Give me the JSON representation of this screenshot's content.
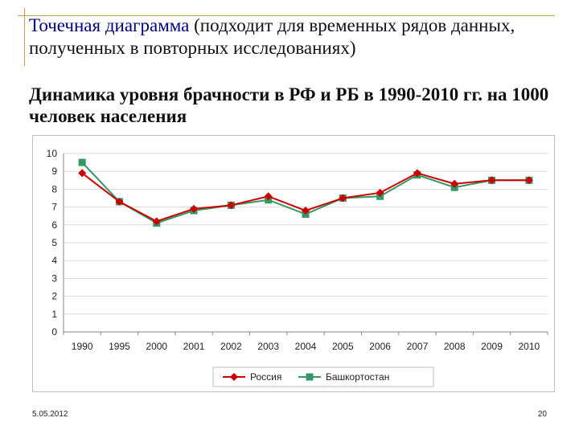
{
  "slide": {
    "heading_bold": "Точечная диаграмма",
    "heading_rest": " (подходит для временных рядов данных, полученных в повторных исследованиях)",
    "subheading": "Динамика уровня брачности в РФ и РБ в 1990-2010 гг. на 1000 человек населения",
    "date": "5.05.2012",
    "page_number": "20"
  },
  "colors": {
    "russia": "#cc0000",
    "bashkortostan": "#339966",
    "grid": "#d9d9d9"
  },
  "chart_data": {
    "type": "line",
    "title": "",
    "xlabel": "",
    "ylabel": "",
    "categories": [
      "1990",
      "1995",
      "2000",
      "2001",
      "2002",
      "2003",
      "2004",
      "2005",
      "2006",
      "2007",
      "2008",
      "2009",
      "2010"
    ],
    "ylim": [
      0,
      10
    ],
    "yticks": [
      0,
      1,
      2,
      3,
      4,
      5,
      6,
      7,
      8,
      9,
      10
    ],
    "grid": true,
    "legend_position": "bottom",
    "series": [
      {
        "name": "Россия",
        "marker": "diamond",
        "color": "#cc0000",
        "values": [
          8.9,
          7.3,
          6.2,
          6.9,
          7.1,
          7.6,
          6.8,
          7.5,
          7.8,
          8.9,
          8.3,
          8.5,
          8.5
        ]
      },
      {
        "name": "Башкортостан",
        "marker": "square",
        "color": "#339966",
        "values": [
          9.5,
          7.3,
          6.1,
          6.8,
          7.1,
          7.4,
          6.6,
          7.5,
          7.6,
          8.8,
          8.1,
          8.5,
          8.5
        ]
      }
    ]
  }
}
